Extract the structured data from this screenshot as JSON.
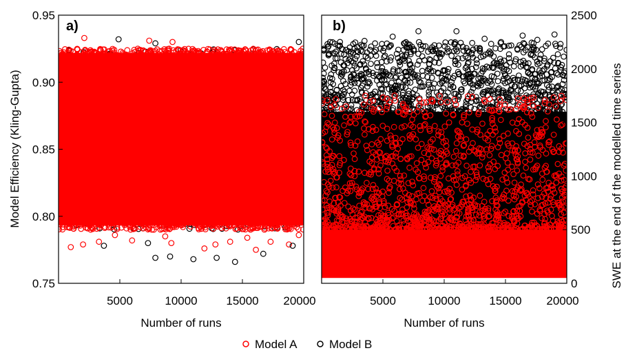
{
  "chart_data": [
    {
      "type": "scatter",
      "panel_label": "a)",
      "xlabel": "Number of runs",
      "ylabel": "Model Efficiency (Kling-Gupta)",
      "xlim": [
        0,
        20000
      ],
      "ylim": [
        0.75,
        0.95
      ],
      "xticks": [
        5000,
        10000,
        15000,
        20000
      ],
      "yticks": [
        0.75,
        0.8,
        0.85,
        0.9,
        0.95
      ],
      "x_tick_labels": [
        "5000",
        "10000",
        "15000",
        "20000"
      ],
      "y_tick_labels": [
        "0.75",
        "0.80",
        "0.85",
        "0.90",
        "0.95"
      ],
      "grid": false,
      "series": [
        {
          "name": "Model A",
          "color": "#ff0000",
          "marker": "open-circle",
          "band": [
            0.79,
            0.925
          ],
          "points": [
            {
              "x": 2100,
              "y": 0.933
            },
            {
              "x": 7400,
              "y": 0.931
            },
            {
              "x": 9300,
              "y": 0.93
            },
            {
              "x": 1000,
              "y": 0.777
            },
            {
              "x": 2000,
              "y": 0.779
            },
            {
              "x": 3300,
              "y": 0.781
            },
            {
              "x": 6000,
              "y": 0.782
            },
            {
              "x": 9200,
              "y": 0.78
            },
            {
              "x": 11900,
              "y": 0.776
            },
            {
              "x": 12800,
              "y": 0.779
            },
            {
              "x": 14000,
              "y": 0.781
            },
            {
              "x": 16100,
              "y": 0.775
            },
            {
              "x": 17300,
              "y": 0.781
            },
            {
              "x": 18800,
              "y": 0.779
            },
            {
              "x": 4600,
              "y": 0.786
            },
            {
              "x": 8700,
              "y": 0.785
            },
            {
              "x": 15400,
              "y": 0.784
            },
            {
              "x": 19600,
              "y": 0.786
            }
          ]
        },
        {
          "name": "Model B",
          "color": "#000000",
          "marker": "open-circle",
          "band": [
            0.79,
            0.925
          ],
          "points": [
            {
              "x": 4900,
              "y": 0.932
            },
            {
              "x": 7900,
              "y": 0.929
            },
            {
              "x": 19600,
              "y": 0.93
            },
            {
              "x": 7900,
              "y": 0.769
            },
            {
              "x": 9100,
              "y": 0.77
            },
            {
              "x": 11000,
              "y": 0.768
            },
            {
              "x": 12900,
              "y": 0.769
            },
            {
              "x": 14400,
              "y": 0.766
            },
            {
              "x": 16700,
              "y": 0.772
            },
            {
              "x": 7300,
              "y": 0.78
            },
            {
              "x": 3700,
              "y": 0.778
            },
            {
              "x": 19100,
              "y": 0.778
            }
          ]
        }
      ]
    },
    {
      "type": "scatter",
      "panel_label": "b)",
      "xlabel": "Number of runs",
      "ylabel": "SWE at the end of the modelled time series",
      "xlim": [
        0,
        20000
      ],
      "ylim": [
        0,
        2500
      ],
      "xticks": [
        5000,
        10000,
        15000,
        20000
      ],
      "yticks": [
        0,
        500,
        1000,
        1500,
        2000,
        2500
      ],
      "x_tick_labels": [
        "5000",
        "10000",
        "15000",
        "20000"
      ],
      "y_tick_labels": [
        "0",
        "500",
        "1000",
        "1500",
        "2000",
        "2500"
      ],
      "y_axis_side": "right",
      "grid": false,
      "series": [
        {
          "name": "Model B",
          "color": "#000000",
          "marker": "open-circle",
          "band": [
            100,
            2100
          ],
          "points": [
            {
              "x": 5800,
              "y": 2300
            },
            {
              "x": 7900,
              "y": 2350
            },
            {
              "x": 11000,
              "y": 2350
            },
            {
              "x": 16400,
              "y": 2310
            },
            {
              "x": 19000,
              "y": 2320
            },
            {
              "x": 1500,
              "y": 2250
            },
            {
              "x": 3500,
              "y": 2260
            },
            {
              "x": 13300,
              "y": 2280
            },
            {
              "x": 17600,
              "y": 2270
            },
            {
              "x": 9200,
              "y": 2220
            },
            {
              "x": 14600,
              "y": 2240
            }
          ]
        },
        {
          "name": "Model A",
          "color": "#ff0000",
          "marker": "open-circle",
          "band": [
            50,
            500
          ],
          "scatter_range": [
            500,
            1750
          ],
          "points": [
            {
              "x": 12300,
              "y": 1740
            },
            {
              "x": 2000,
              "y": 1650
            },
            {
              "x": 6300,
              "y": 1600
            },
            {
              "x": 8500,
              "y": 1560
            },
            {
              "x": 19100,
              "y": 1650
            },
            {
              "x": 14500,
              "y": 1600
            },
            {
              "x": 10400,
              "y": 1500
            },
            {
              "x": 16800,
              "y": 1450
            }
          ]
        }
      ]
    }
  ],
  "legend": {
    "placement": "bottom-center",
    "items": [
      {
        "label": "Model A",
        "color": "#ff0000"
      },
      {
        "label": "Model B",
        "color": "#000000"
      }
    ]
  }
}
